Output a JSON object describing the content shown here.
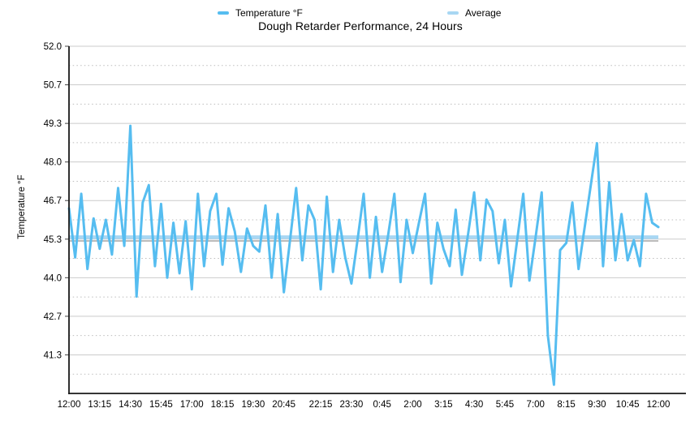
{
  "title": "Dough Retarder Performance, 24 Hours",
  "legend": {
    "temperature": {
      "label": "Temperature °F",
      "color": "#56BDF0"
    },
    "average": {
      "label": "Average",
      "color": "#A8D7F3"
    }
  },
  "chart_data": {
    "type": "line",
    "title": "Dough Retarder Performance, 24 Hours",
    "xlabel": "",
    "ylabel": "Temperature °F",
    "ylim": [
      40.0,
      52.0
    ],
    "grid": {
      "major": "solid",
      "minor": "dotted",
      "major_color": "#cbcbcb",
      "minor_color": "#bdbdbd"
    },
    "legend_position": "top",
    "y_tick_labels": [
      "52.0",
      "50.7",
      "49.3",
      "48.0",
      "46.7",
      "45.3",
      "44.0",
      "42.7",
      "41.3"
    ],
    "y_tick_values": [
      52.0,
      50.667,
      49.333,
      48.0,
      46.667,
      45.333,
      44.0,
      42.667,
      41.333
    ],
    "y_minor_values": [
      51.333,
      50.0,
      48.667,
      47.333,
      46.0,
      44.667,
      43.333,
      42.0,
      40.667
    ],
    "x_tick_labels": [
      "12:00",
      "13:15",
      "14:30",
      "15:45",
      "17:00",
      "18:15",
      "19:30",
      "20:45",
      "22:15",
      "23:30",
      "0:45",
      "2:00",
      "3:15",
      "4:30",
      "5:45",
      "7:00",
      "8:15",
      "9:30",
      "10:45",
      "12:00"
    ],
    "x_tick_indices": [
      0,
      5,
      10,
      15,
      20,
      25,
      30,
      35,
      41,
      46,
      51,
      56,
      61,
      66,
      71,
      76,
      81,
      86,
      91,
      96
    ],
    "series": [
      {
        "name": "Temperature °F",
        "type": "line",
        "color": "#56BDF0",
        "values": [
          46.4,
          44.7,
          46.9,
          44.3,
          46.05,
          45.0,
          46.0,
          44.8,
          47.1,
          45.1,
          49.25,
          43.35,
          46.6,
          47.2,
          44.4,
          46.55,
          44.0,
          45.9,
          44.15,
          45.95,
          43.6,
          46.9,
          44.4,
          46.3,
          46.9,
          44.45,
          46.4,
          45.6,
          44.2,
          45.7,
          45.1,
          44.9,
          46.5,
          44.0,
          46.2,
          43.5,
          45.3,
          47.1,
          44.6,
          46.5,
          46.0,
          43.6,
          46.8,
          44.2,
          46.0,
          44.7,
          43.8,
          45.3,
          46.9,
          44.0,
          46.1,
          44.2,
          45.5,
          46.9,
          43.85,
          46.0,
          44.85,
          45.9,
          46.9,
          43.8,
          45.9,
          45.0,
          44.4,
          46.35,
          44.1,
          45.5,
          46.95,
          44.6,
          46.7,
          46.3,
          44.5,
          46.0,
          43.7,
          45.3,
          46.9,
          43.9,
          45.4,
          46.95,
          42.0,
          40.3,
          44.95,
          45.2,
          46.6,
          44.3,
          45.75,
          47.2,
          48.65,
          44.4,
          47.3,
          44.6,
          46.2,
          44.6,
          45.3,
          44.4,
          46.9,
          45.9,
          45.75
        ]
      },
      {
        "name": "Average",
        "type": "horizontal-line",
        "color": "#A8D7F3",
        "value": 45.4
      }
    ],
    "gray_baseline": {
      "color": "#bcbcbc",
      "value": 45.27
    }
  }
}
